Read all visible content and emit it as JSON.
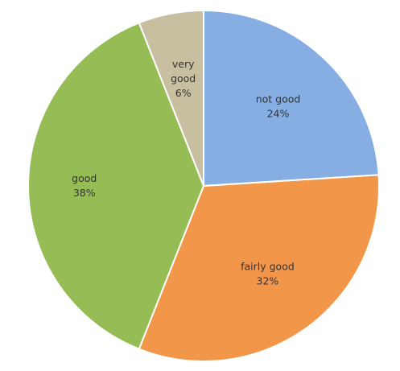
{
  "chart_data": {
    "type": "pie",
    "start_angle_deg": 0,
    "direction": "clockwise",
    "slices": [
      {
        "label_lines": [
          "not good",
          "24%"
        ],
        "value": 24,
        "color": "#86aee3"
      },
      {
        "label_lines": [
          "fairly good",
          "32%"
        ],
        "value": 32,
        "color": "#f2964a"
      },
      {
        "label_lines": [
          "good",
          "38%"
        ],
        "value": 38,
        "color": "#96bd55"
      },
      {
        "label_lines": [
          "very",
          "good",
          "6%"
        ],
        "value": 6,
        "color": "#c8bea0"
      }
    ]
  }
}
